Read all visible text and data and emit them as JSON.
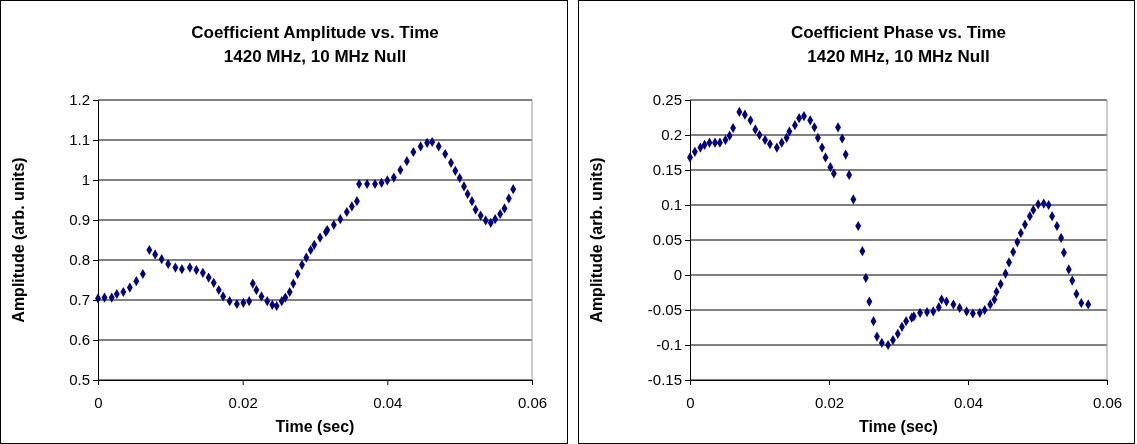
{
  "chart_data": [
    {
      "type": "scatter",
      "title": "Coefficient Amplitude vs. Time",
      "subtitle": "1420 MHz, 10 MHz Null",
      "xlabel": "Time (sec)",
      "ylabel": "Amplitude (arb. units)",
      "xlim": [
        0,
        0.06
      ],
      "xticks": [
        0,
        0.02,
        0.04,
        0.06
      ],
      "ylim": [
        0.5,
        1.2
      ],
      "yticks": [
        0.5,
        0.6,
        0.7,
        0.8,
        0.9,
        1,
        1.1,
        1.2
      ],
      "grid": "y",
      "marker": "diamond",
      "series": [
        {
          "color": "#000080",
          "x": [
            0,
            0.0009,
            0.0019,
            0.0026,
            0.0035,
            0.0044,
            0.0053,
            0.0062,
            0.0071,
            0.0079,
            0.0088,
            0.0097,
            0.0107,
            0.0116,
            0.0127,
            0.0136,
            0.0145,
            0.0153,
            0.016,
            0.0167,
            0.0173,
            0.0182,
            0.0192,
            0.0201,
            0.0209,
            0.0214,
            0.0219,
            0.0226,
            0.0234,
            0.0241,
            0.0247,
            0.0254,
            0.0259,
            0.0265,
            0.027,
            0.0276,
            0.0282,
            0.0288,
            0.0294,
            0.0299,
            0.0307,
            0.0315,
            0.0317,
            0.0326,
            0.0335,
            0.0344,
            0.0351,
            0.0358,
            0.0361,
            0.0372,
            0.0383,
            0.0392,
            0.04,
            0.0409,
            0.0418,
            0.0427,
            0.0436,
            0.0446,
            0.0455,
            0.0462,
            0.0471,
            0.048,
            0.0488,
            0.0494,
            0.05,
            0.0506,
            0.0511,
            0.0517,
            0.0522,
            0.0529,
            0.0536,
            0.0543,
            0.0549,
            0.0556,
            0.0562,
            0.0568,
            0.0574
          ],
          "values": [
            0.704,
            0.706,
            0.706,
            0.715,
            0.72,
            0.731,
            0.747,
            0.765,
            0.825,
            0.814,
            0.802,
            0.79,
            0.781,
            0.777,
            0.781,
            0.775,
            0.768,
            0.756,
            0.743,
            0.725,
            0.709,
            0.697,
            0.69,
            0.693,
            0.697,
            0.741,
            0.725,
            0.709,
            0.697,
            0.688,
            0.685,
            0.697,
            0.706,
            0.72,
            0.741,
            0.765,
            0.788,
            0.806,
            0.825,
            0.838,
            0.856,
            0.87,
            0.875,
            0.888,
            0.902,
            0.92,
            0.934,
            0.947,
            0.99,
            0.99,
            0.99,
            0.993,
            0.999,
            1.006,
            1.025,
            1.047,
            1.07,
            1.084,
            1.093,
            1.095,
            1.084,
            1.065,
            1.043,
            1.023,
            1.005,
            0.984,
            0.965,
            0.947,
            0.926,
            0.911,
            0.899,
            0.893,
            0.902,
            0.915,
            0.929,
            0.954,
            0.977
          ]
        }
      ]
    },
    {
      "type": "scatter",
      "title": "Coefficient Phase vs. Time",
      "subtitle": "1420 MHz, 10 MHz Null",
      "xlabel": "Time (sec)",
      "ylabel": "Amplitude (arb. units)",
      "xlim": [
        0,
        0.06
      ],
      "xticks": [
        0,
        0.02,
        0.04,
        0.06
      ],
      "ylim": [
        -0.15,
        0.25
      ],
      "yticks": [
        -0.15,
        -0.1,
        -0.05,
        0,
        0.05,
        0.1,
        0.15,
        0.2,
        0.25
      ],
      "grid": "y",
      "marker": "diamond",
      "series": [
        {
          "color": "#000080",
          "x": [
            0,
            0.0007,
            0.0015,
            0.0021,
            0.0028,
            0.0036,
            0.0043,
            0.0051,
            0.0057,
            0.0062,
            0.0071,
            0.0079,
            0.0087,
            0.0094,
            0.01,
            0.0108,
            0.0115,
            0.0125,
            0.0132,
            0.0139,
            0.0143,
            0.0151,
            0.0157,
            0.0164,
            0.0173,
            0.0179,
            0.0184,
            0.019,
            0.0195,
            0.0202,
            0.0207,
            0.0213,
            0.0219,
            0.0224,
            0.0229,
            0.0235,
            0.0242,
            0.0248,
            0.0253,
            0.0258,
            0.0264,
            0.0269,
            0.0276,
            0.0285,
            0.0292,
            0.0299,
            0.0305,
            0.0311,
            0.0319,
            0.0322,
            0.0331,
            0.0341,
            0.035,
            0.0358,
            0.0362,
            0.0369,
            0.0379,
            0.0388,
            0.0398,
            0.0407,
            0.0417,
            0.0424,
            0.0432,
            0.0438,
            0.0441,
            0.0447,
            0.0454,
            0.0459,
            0.0465,
            0.0471,
            0.0476,
            0.0482,
            0.0489,
            0.0494,
            0.0501,
            0.0509,
            0.0516,
            0.0521,
            0.0528,
            0.0534,
            0.0538,
            0.0545,
            0.055,
            0.0556,
            0.0563,
            0.0573
          ],
          "values": [
            0.168,
            0.176,
            0.182,
            0.186,
            0.189,
            0.189,
            0.189,
            0.193,
            0.199,
            0.21,
            0.233,
            0.229,
            0.221,
            0.208,
            0.2,
            0.193,
            0.187,
            0.182,
            0.189,
            0.196,
            0.205,
            0.214,
            0.224,
            0.227,
            0.221,
            0.211,
            0.196,
            0.182,
            0.168,
            0.154,
            0.145,
            0.211,
            0.195,
            0.172,
            0.143,
            0.108,
            0.07,
            0.034,
            -0.004,
            -0.038,
            -0.066,
            -0.088,
            -0.097,
            -0.1,
            -0.093,
            -0.084,
            -0.074,
            -0.066,
            -0.061,
            -0.059,
            -0.054,
            -0.053,
            -0.052,
            -0.046,
            -0.035,
            -0.038,
            -0.042,
            -0.047,
            -0.052,
            -0.055,
            -0.054,
            -0.05,
            -0.042,
            -0.035,
            -0.024,
            -0.013,
            0.002,
            0.018,
            0.033,
            0.047,
            0.06,
            0.072,
            0.084,
            0.093,
            0.101,
            0.102,
            0.1,
            0.084,
            0.07,
            0.053,
            0.032,
            0.008,
            -0.008,
            -0.027,
            -0.04,
            -0.042
          ]
        }
      ]
    }
  ]
}
